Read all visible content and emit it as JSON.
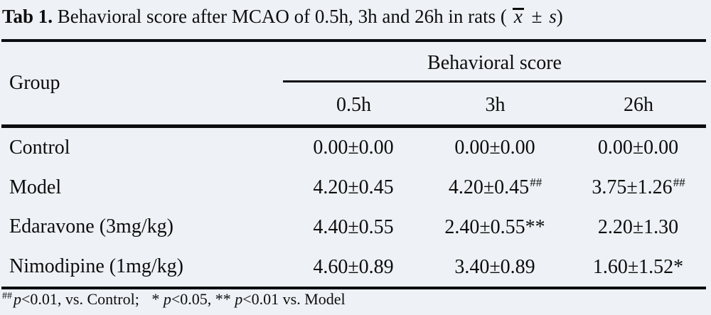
{
  "page": {
    "background": "#eef1f5",
    "rule_color": "#0b0d10"
  },
  "title": {
    "label": "Tab 1.",
    "text": "Behavioral score after MCAO of 0.5h, 3h and 26h in rats (",
    "mean_symbol": "x",
    "plus_minus": "±",
    "sd_symbol": "s",
    "close_paren": ")"
  },
  "table": {
    "header": {
      "group": "Group",
      "spanner": "Behavioral score",
      "columns": [
        "0.5h",
        "3h",
        "26h"
      ]
    },
    "rows": [
      {
        "group": "Control",
        "c1": "0.00±0.00",
        "c1sup": "",
        "c2": "0.00±0.00",
        "c2sup": "",
        "c3": "0.00±0.00",
        "c3sup": ""
      },
      {
        "group": "Model",
        "c1": "4.20±0.45",
        "c1sup": "",
        "c2": "4.20±0.45",
        "c2sup": "##",
        "c3": "3.75±1.26",
        "c3sup": "##"
      },
      {
        "group": "Edaravone (3mg/kg)",
        "c1": "4.40±0.55",
        "c1sup": "",
        "c2": "2.40±0.55**",
        "c2sup": "",
        "c3": "2.20±1.30",
        "c3sup": ""
      },
      {
        "group": "Nimodipine (1mg/kg)",
        "c1": "4.60±0.89",
        "c1sup": "",
        "c2": "3.40±0.89",
        "c2sup": "",
        "c3": "1.60±1.52*",
        "c3sup": ""
      }
    ]
  },
  "footnote": {
    "marker": "##",
    "p1": "p",
    "t1": "<0.01, vs. Control;",
    "star1": "*",
    "p2": "p",
    "t2": "<0.05,",
    "star2": "**",
    "p3": "p",
    "t3": "<0.01 vs. Model"
  }
}
